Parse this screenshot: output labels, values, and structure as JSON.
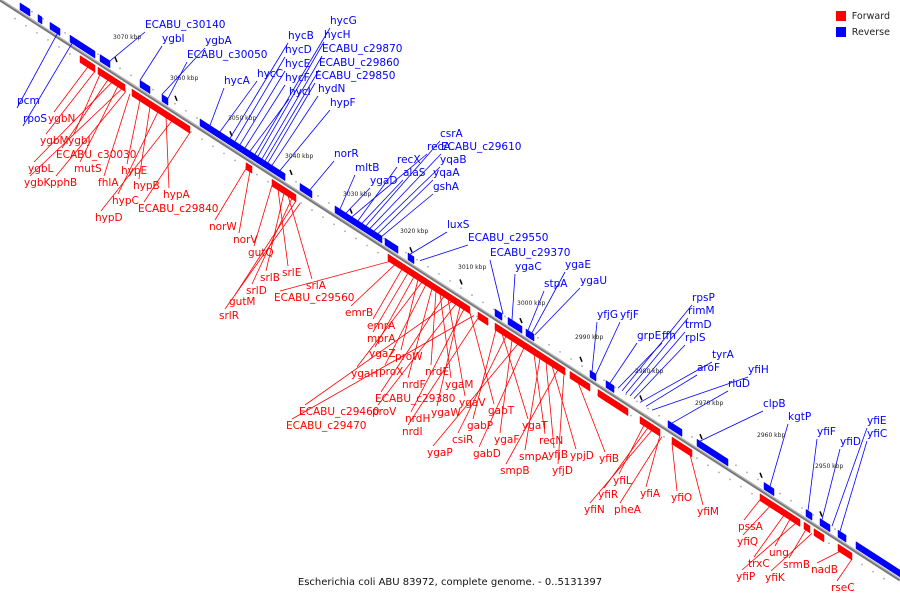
{
  "title": "Escherichia coli ABU 83972, complete genome. - 0..5131397",
  "legend": {
    "forward": {
      "label": "Forward",
      "color": "#ff0000"
    },
    "reverse": {
      "label": "Reverse",
      "color": "#0000ff"
    }
  },
  "axis": {
    "tick_labels": [
      "3070 kbp",
      "3060 kbp",
      "3050 kbp",
      "3040 kbp",
      "3030 kbp",
      "3020 kbp",
      "3010 kbp",
      "3000 kbp",
      "2990 kbp",
      "2980 kbp",
      "2970 kbp",
      "2960 kbp",
      "2950 kbp"
    ]
  },
  "reverse_genes": [
    "ECABU_c30140",
    "ygbI",
    "ygbA",
    "ECABU_c30050",
    "hycA",
    "hycC",
    "hycB",
    "hycD",
    "hycE",
    "hycF",
    "hycI",
    "hycG",
    "hycH",
    "ECABU_c29870",
    "ECABU_c29860",
    "ECABU_c29850",
    "hydN",
    "hypF",
    "pcm",
    "rpoS",
    "norR",
    "mltB",
    "ygaD",
    "recA",
    "recX",
    "alaS",
    "csrA",
    "ECABU_c29610",
    "yqaB",
    "yqaA",
    "gshA",
    "luxS",
    "ECABU_c29550",
    "ECABU_c29370",
    "ygaC",
    "stpA",
    "ygaE",
    "ygaU",
    "yfjG",
    "yfjF",
    "grpE",
    "ffh",
    "rpsP",
    "rimM",
    "trmD",
    "rplS",
    "tyrA",
    "aroF",
    "yfiH",
    "rluD",
    "clpB",
    "kgtP",
    "yfiF",
    "yfiD",
    "yfiE",
    "yfiC"
  ],
  "forward_genes": [
    "ygbN",
    "ygbM",
    "ygbJ",
    "ECABU_c30030",
    "ygbL",
    "mutS",
    "ygbK",
    "pphB",
    "fhlA",
    "hypE",
    "hypB",
    "hypC",
    "hypA",
    "hypD",
    "ECABU_c29840",
    "norW",
    "norV",
    "gutQ",
    "srlE",
    "srlB",
    "srlA",
    "srlD",
    "gutM",
    "srlR",
    "ECABU_c29560",
    "emrB",
    "emrA",
    "mprA",
    "ygaZ",
    "proW",
    "ygaH",
    "proX",
    "nrdF",
    "nrdE",
    "ygaM",
    "ECABU_c29380",
    "ygaV",
    "ECABU_c29460",
    "proV",
    "ygaW",
    "nrdH",
    "gabT",
    "ECABU_c29470",
    "nrdI",
    "gabP",
    "ygaT",
    "csiR",
    "ygaF",
    "ygaP",
    "gabD",
    "recN",
    "smpA",
    "yfjB",
    "ypjD",
    "smpB",
    "yfjD",
    "yfiB",
    "yfiL",
    "yfiR",
    "yfiA",
    "yfiO",
    "yfiN",
    "pheA",
    "yfiM",
    "pssA",
    "yfiQ",
    "trxC",
    "ung",
    "yfiP",
    "srmB",
    "yfiK",
    "nadB",
    "rseC"
  ]
}
